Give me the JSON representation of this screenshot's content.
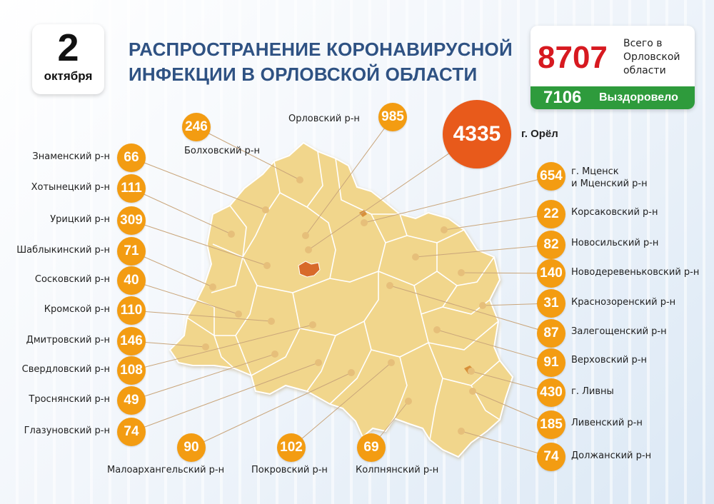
{
  "date": {
    "day": "2",
    "month": "октября"
  },
  "title_line1": "РАСПРОСТРАНЕНИЕ КОРОНАВИРУСНОЙ",
  "title_line2": "ИНФЕКЦИИ В ОРЛОВСКОЙ ОБЛАСТИ",
  "total": {
    "value": "8707",
    "label": "Всего в Орловской области"
  },
  "recovered": {
    "value": "7106",
    "label": "Выздоровело"
  },
  "colors": {
    "accent_orange": "#f39c12",
    "orel_red": "#e85a1b",
    "total_red": "#d71920",
    "recovered_green": "#2e9b3c",
    "map_fill": "#f1d68c",
    "title_blue": "#2f5283"
  },
  "districts": [
    {
      "id": "bolkhov",
      "name": "Болховский р-н",
      "value": 246
    },
    {
      "id": "orlovsky",
      "name": "Орловский р-н",
      "value": 985
    },
    {
      "id": "orel",
      "name": "г. Орёл",
      "value": 4335
    },
    {
      "id": "znamensky",
      "name": "Знаменский р-н",
      "value": 66
    },
    {
      "id": "khotynets",
      "name": "Хотынецкий р-н",
      "value": 111
    },
    {
      "id": "uritsky",
      "name": "Урицкий р-н",
      "value": 309
    },
    {
      "id": "shablykino",
      "name": "Шаблыкинский р-н",
      "value": 71
    },
    {
      "id": "soskovo",
      "name": "Сосковский р-н",
      "value": 40
    },
    {
      "id": "kromy",
      "name": "Кромской р-н",
      "value": 110
    },
    {
      "id": "dmitrovsk",
      "name": "Дмитровский р-н",
      "value": 146
    },
    {
      "id": "sverdlovsky",
      "name": "Свердловский р-н",
      "value": 108
    },
    {
      "id": "trosna",
      "name": "Троснянский р-н",
      "value": 49
    },
    {
      "id": "glazunovka",
      "name": "Глазуновский р-н",
      "value": 74
    },
    {
      "id": "maloarkhangelsk",
      "name": "Малоархангельский р-н",
      "value": 90
    },
    {
      "id": "pokrovsky",
      "name": "Покровский р-н",
      "value": 102
    },
    {
      "id": "kolpny",
      "name": "Колпнянский р-н",
      "value": 69
    },
    {
      "id": "mtsensk",
      "name": "г. Мценск\nи Мценский р-н",
      "value": 654
    },
    {
      "id": "korsakovo",
      "name": "Корсаковский р-н",
      "value": 22
    },
    {
      "id": "novosil",
      "name": "Новосильский р-н",
      "value": 82
    },
    {
      "id": "novoderevenkovsky",
      "name": "Новодеревеньковский р-н",
      "value": 140
    },
    {
      "id": "krasnaya_zarya",
      "name": "Краснозоренский р-н",
      "value": 31
    },
    {
      "id": "zalegoshch",
      "name": "Залегощенский р-н",
      "value": 87
    },
    {
      "id": "verkhovye",
      "name": "Верховский р-н",
      "value": 91
    },
    {
      "id": "livny",
      "name": "г. Ливны",
      "value": 430
    },
    {
      "id": "livensky",
      "name": "Ливенский р-н",
      "value": 185
    },
    {
      "id": "dolzhansky",
      "name": "Должанский р-н",
      "value": 74
    }
  ]
}
